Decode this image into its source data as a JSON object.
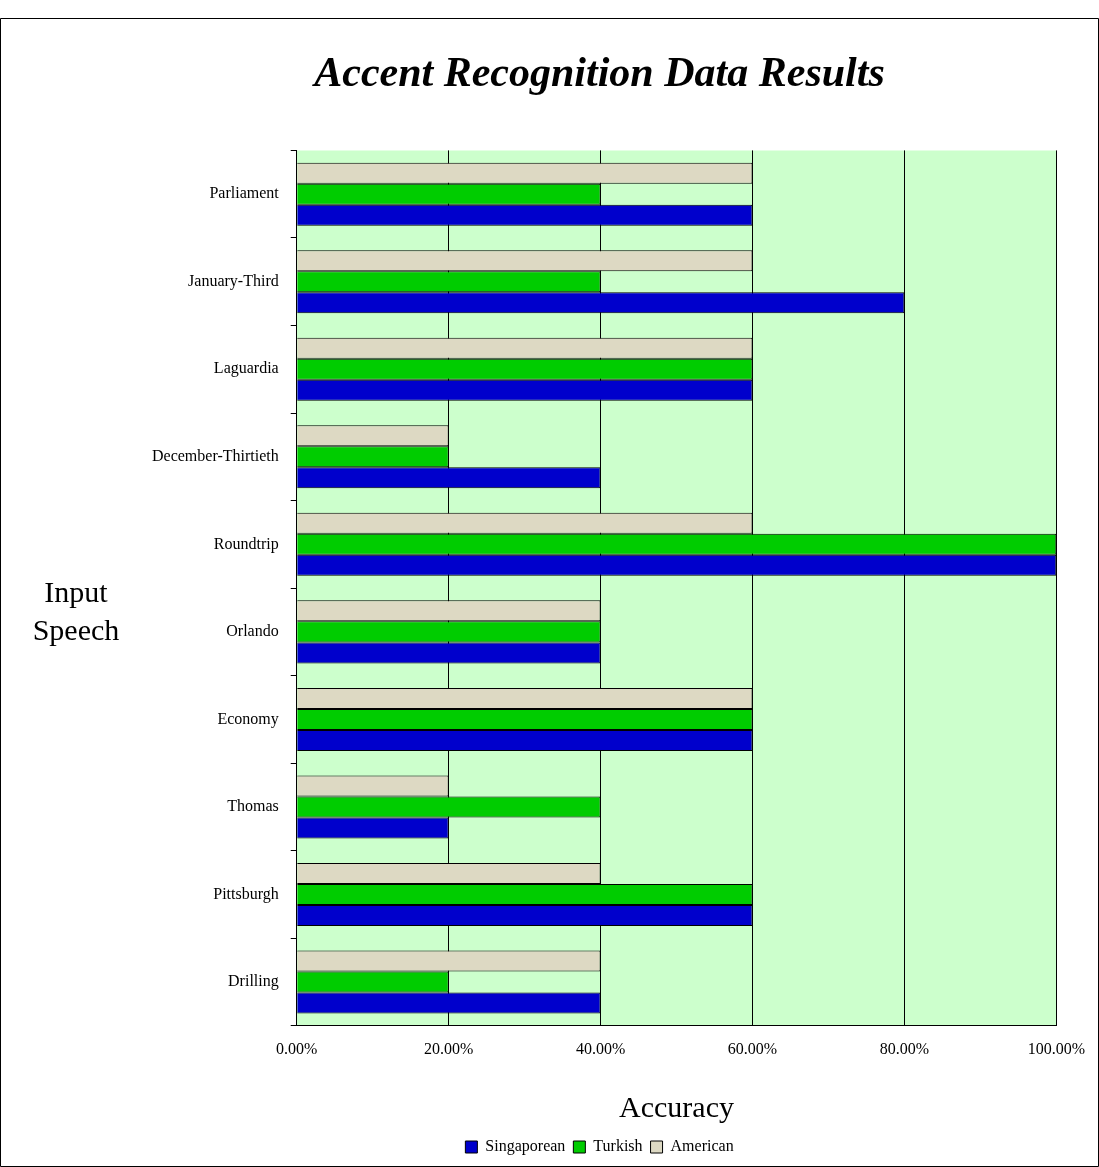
{
  "chart_data": {
    "type": "bar",
    "orientation": "horizontal",
    "title": "Accent Recognition Data Results",
    "xlabel": "Accuracy",
    "ylabel": "Input Speech",
    "categories": [
      "Parliament",
      "January-Third",
      "Laguardia",
      "December-Thirtieth",
      "Roundtrip",
      "Orlando",
      "Economy",
      "Thomas",
      "Pittsburgh",
      "Drilling"
    ],
    "series": [
      {
        "name": "Singaporean",
        "color": "#0000cc",
        "values": [
          60,
          80,
          60,
          40,
          100,
          40,
          60,
          20,
          60,
          40
        ]
      },
      {
        "name": "Turkish",
        "color": "#00cc00",
        "values": [
          40,
          40,
          60,
          20,
          100,
          40,
          60,
          40,
          60,
          20
        ]
      },
      {
        "name": "American",
        "color": "#ddd9c3",
        "values": [
          60,
          60,
          60,
          20,
          60,
          40,
          60,
          20,
          40,
          40
        ]
      }
    ],
    "xlim": [
      0,
      100
    ],
    "xticks": [
      {
        "value": 0,
        "label": "0.00%"
      },
      {
        "value": 20,
        "label": "20.00%"
      },
      {
        "value": 40,
        "label": "40.00%"
      },
      {
        "value": 60,
        "label": "60.00%"
      },
      {
        "value": 80,
        "label": "80.00%"
      },
      {
        "value": 100,
        "label": "100.00%"
      }
    ],
    "grid": "x",
    "legend": "bottom"
  }
}
